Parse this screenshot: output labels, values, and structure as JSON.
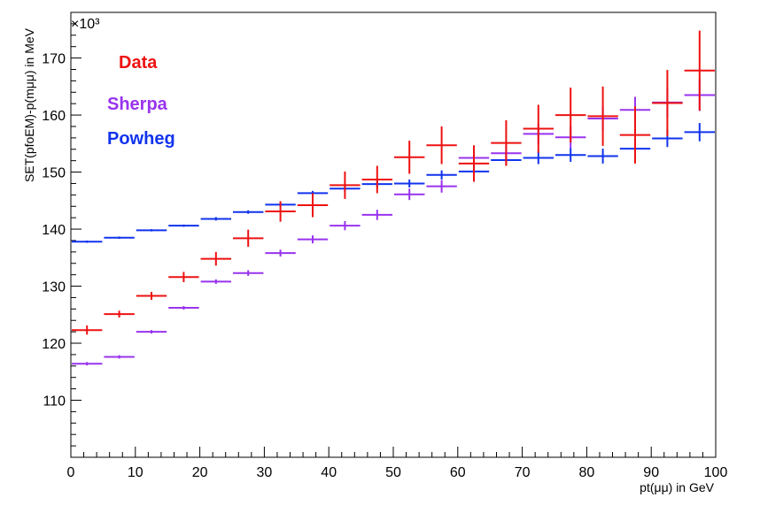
{
  "chart_data": {
    "type": "scatter",
    "x_label": "pt(μμ) in GeV",
    "y_label": "SET(pfoEM)-p(mμμ) in MeV",
    "y_multiplier": "×10³",
    "xlim": [
      0,
      100
    ],
    "ylim": [
      100,
      178
    ],
    "x_ticks": [
      "0",
      "10",
      "20",
      "30",
      "40",
      "50",
      "60",
      "70",
      "80",
      "90",
      "100"
    ],
    "y_ticks": [
      "110",
      "120",
      "130",
      "140",
      "150",
      "160",
      "170"
    ],
    "grid": false,
    "legend_position": "top-left",
    "bin_edges": [
      0,
      5,
      10,
      15,
      20,
      25,
      30,
      35,
      40,
      45,
      50,
      55,
      60,
      65,
      70,
      75,
      80,
      85,
      90,
      95,
      100
    ],
    "series": [
      {
        "name": "Data",
        "color": "#ee1111",
        "values": [
          122.3,
          125.1,
          128.3,
          131.6,
          134.8,
          138.4,
          143.1,
          144.2,
          147.7,
          148.7,
          152.6,
          154.7,
          151.5,
          155.1,
          157.6,
          160.0,
          159.8,
          156.5,
          162.1,
          167.8
        ],
        "errors": [
          0.8,
          0.6,
          0.7,
          0.9,
          1.2,
          1.5,
          1.8,
          2.1,
          2.4,
          2.4,
          2.9,
          3.3,
          3.2,
          4.0,
          4.2,
          4.8,
          5.2,
          5.0,
          5.8,
          7.0
        ]
      },
      {
        "name": "Sherpa",
        "color": "#9933ee",
        "values": [
          116.4,
          117.6,
          122.0,
          126.2,
          130.8,
          132.3,
          135.8,
          138.2,
          140.6,
          142.5,
          146.1,
          147.5,
          152.5,
          153.3,
          156.7,
          156.1,
          159.4,
          160.9,
          162.2,
          163.5
        ],
        "errors": [
          0.3,
          0.3,
          0.3,
          0.3,
          0.4,
          0.5,
          0.6,
          0.7,
          0.8,
          0.9,
          1.0,
          1.1,
          1.3,
          1.5,
          1.7,
          1.9,
          2.1,
          2.3,
          2.6,
          2.8
        ]
      },
      {
        "name": "Powheg",
        "color": "#1133ee",
        "values": [
          137.8,
          138.5,
          139.8,
          140.6,
          141.8,
          143.0,
          144.3,
          146.3,
          147.1,
          147.9,
          148.0,
          149.5,
          150.1,
          152.1,
          152.5,
          153.0,
          152.8,
          154.1,
          155.9,
          157.0
        ],
        "errors": [
          0.2,
          0.2,
          0.2,
          0.2,
          0.3,
          0.3,
          0.4,
          0.4,
          0.5,
          0.6,
          0.7,
          0.8,
          0.9,
          1.0,
          1.1,
          1.2,
          1.3,
          1.4,
          1.5,
          1.6
        ]
      }
    ]
  }
}
